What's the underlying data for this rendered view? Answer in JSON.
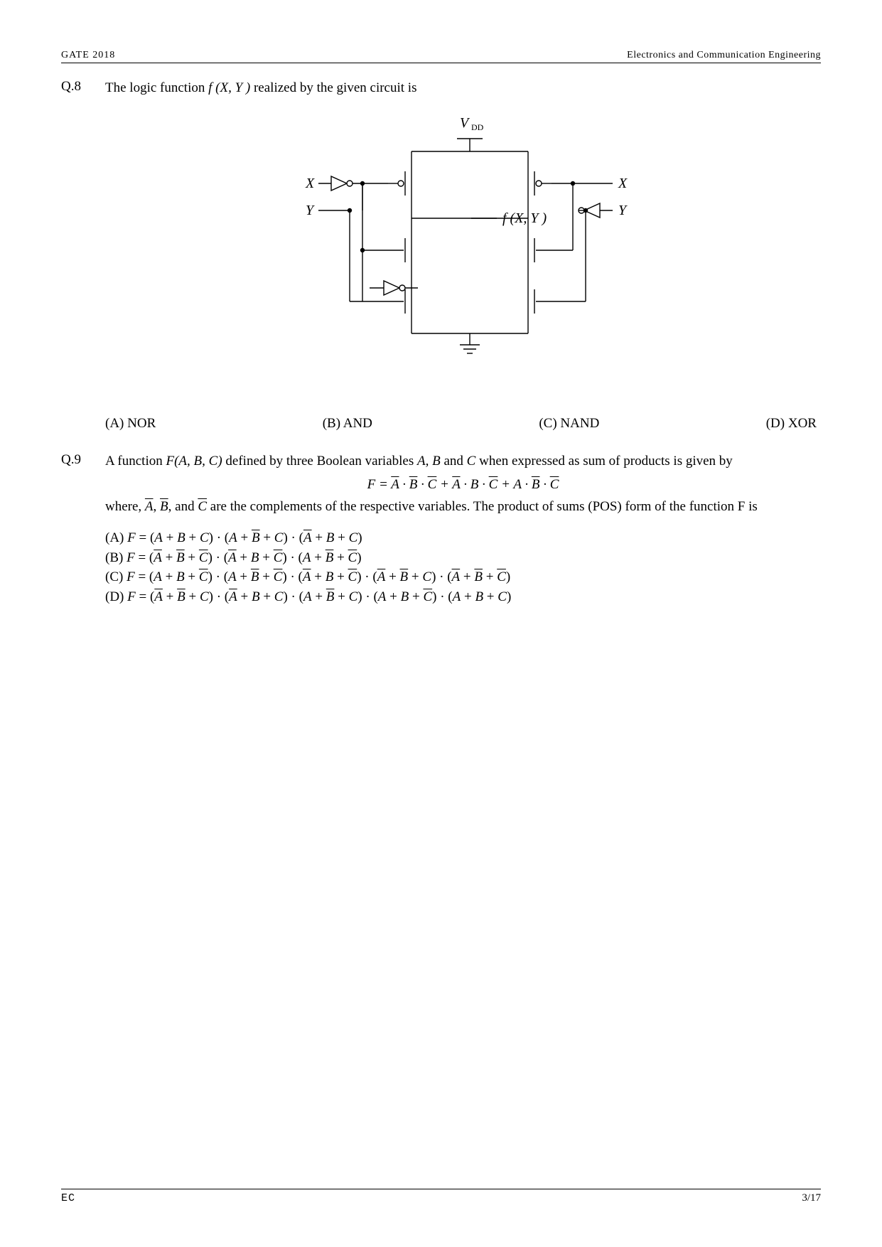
{
  "header": {
    "left": "GATE 2018",
    "right": "Electronics and Communication Engineering"
  },
  "q8": {
    "number": "Q.8",
    "stem_before": "The logic function  ",
    "stem_func": "f (X, Y )",
    "stem_after": "  realized by the given circuit is",
    "options": {
      "A": "(A) NOR",
      "B": "(B) AND",
      "C": "(C) NAND",
      "D": "(D) XOR"
    },
    "circuit": {
      "Vdd_label": "V",
      "Vdd_sub": "DD",
      "X_label": "X",
      "Y_label": "Y",
      "f_label": "f (X, Y )",
      "stroke": "#000000",
      "stroke_width": 1.4,
      "text_fontsize": 20
    }
  },
  "q9": {
    "number": "Q.9",
    "line1_a": "A function ",
    "line1_b": "F(A, B, C)",
    "line1_c": " defined by three Boolean variables ",
    "line1_d": "A, B",
    "line1_e": " and ",
    "line1_f": "C",
    "line1_g": " when expressed as sum of products is given by",
    "eq_lhs": "F = ",
    "line2_a": "where, ",
    "line2_b": "A",
    "line2_c": ", ",
    "line2_d": "B",
    "line2_e": ", and ",
    "line2_f": "C",
    "line2_g": " are the complements of the respective variables. The product of sums (POS) form of the function F is",
    "labels": {
      "A": "(A) ",
      "B": "(B) ",
      "C": "(C) ",
      "D": "(D) "
    }
  },
  "footer": {
    "left": "EC",
    "right": "3/17"
  }
}
